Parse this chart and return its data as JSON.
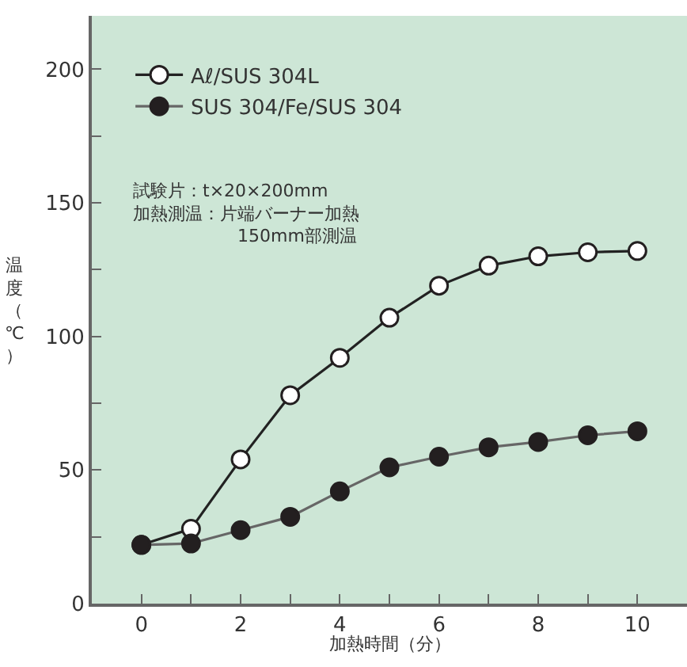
{
  "chart_data": {
    "type": "line",
    "xlabel": "加熱時間（分）",
    "ylabel": "温度（℃）",
    "x": [
      0,
      1,
      2,
      3,
      4,
      5,
      6,
      7,
      8,
      9,
      10
    ],
    "series": [
      {
        "name": "Aℓ/SUS 304L",
        "color": "#ffffff",
        "values": [
          22,
          28,
          54,
          78,
          92,
          107,
          119,
          126.5,
          130,
          131.5,
          132
        ]
      },
      {
        "name": "SUS 304/Fe/SUS 304",
        "color": "#231f20",
        "values": [
          22,
          22.5,
          27.5,
          32.5,
          42,
          51,
          55,
          58.5,
          60.5,
          63,
          64.5
        ]
      }
    ],
    "xlim": [
      -1,
      11
    ],
    "ylim": [
      0,
      220
    ],
    "xticks": [
      0,
      {
        "value": 1,
        "label": null
      },
      2,
      {
        "value": 3,
        "label": null
      },
      4,
      {
        "value": 5,
        "label": null
      },
      6,
      {
        "value": 7,
        "label": null
      },
      8,
      {
        "value": 9,
        "label": null
      },
      10
    ],
    "yticks": [
      0,
      {
        "value": 25,
        "label": null
      },
      50,
      {
        "value": 75,
        "label": null
      },
      100,
      {
        "value": 125,
        "label": null
      },
      150,
      {
        "value": 175,
        "label": null
      },
      200
    ],
    "annotations": [
      "試験片：t×20×200mm",
      "加熱測温：片端バーナー加熱",
      "150mm部測温"
    ],
    "marker": "circle",
    "line_style": "solid",
    "grid": false,
    "legend": "top left"
  }
}
